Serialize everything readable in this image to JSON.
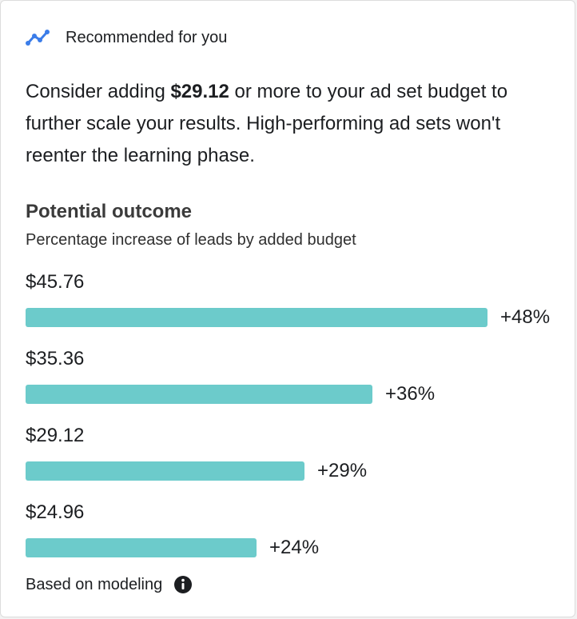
{
  "header": {
    "icon": "trend-line-icon",
    "accent_color": "#3b7de9",
    "title": "Recommended for you"
  },
  "message": {
    "before": "Consider adding ",
    "amount": "$29.12",
    "after": " or more to your ad set budget to further scale your results. High-performing ad sets won't reenter the learning phase."
  },
  "outcome": {
    "title": "Potential outcome",
    "subtitle": "Percentage increase of leads by added budget",
    "bar_color": "#6ccbcb",
    "rows": [
      {
        "budget": "$45.76",
        "percent_label": "+48%",
        "percent": 48
      },
      {
        "budget": "$35.36",
        "percent_label": "+36%",
        "percent": 36
      },
      {
        "budget": "$29.12",
        "percent_label": "+29%",
        "percent": 29
      },
      {
        "budget": "$24.96",
        "percent_label": "+24%",
        "percent": 24
      }
    ]
  },
  "footer": {
    "text": "Based on modeling",
    "icon": "info-icon"
  }
}
